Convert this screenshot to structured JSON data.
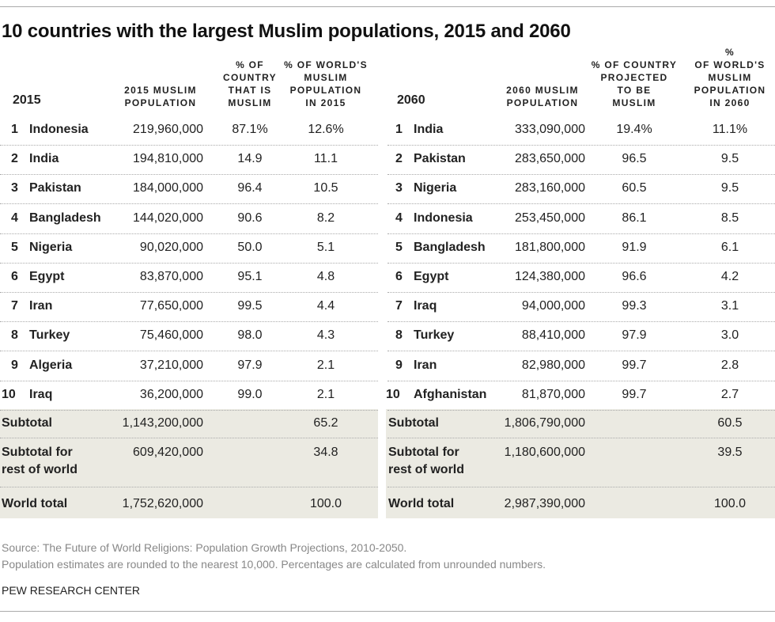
{
  "title": "10 countries with the largest Muslim populations, 2015 and 2060",
  "chart_data": {
    "type": "table",
    "tables": [
      {
        "year_label": "2015",
        "headers": [
          "2015 MUSLIM POPULATION",
          "% OF COUNTRY THAT IS MUSLIM",
          "% OF WORLD'S MUSLIM POPULATION IN 2015"
        ],
        "header_lines": [
          [
            "2015 MUSLIM",
            "POPULATION"
          ],
          [
            "% OF",
            "COUNTRY",
            "THAT IS",
            "MUSLIM"
          ],
          [
            "% OF WORLD'S",
            "MUSLIM",
            "POPULATION",
            "IN 2015"
          ]
        ],
        "rows": [
          {
            "rank": "1",
            "country": "Indonesia",
            "population": "219,960,000",
            "pct_country": "87.1%",
            "pct_world": "12.6%"
          },
          {
            "rank": "2",
            "country": "India",
            "population": "194,810,000",
            "pct_country": "14.9",
            "pct_world": "11.1"
          },
          {
            "rank": "3",
            "country": "Pakistan",
            "population": "184,000,000",
            "pct_country": "96.4",
            "pct_world": "10.5"
          },
          {
            "rank": "4",
            "country": "Bangladesh",
            "population": "144,020,000",
            "pct_country": "90.6",
            "pct_world": "8.2"
          },
          {
            "rank": "5",
            "country": "Nigeria",
            "population": "90,020,000",
            "pct_country": "50.0",
            "pct_world": "5.1"
          },
          {
            "rank": "6",
            "country": "Egypt",
            "population": "83,870,000",
            "pct_country": "95.1",
            "pct_world": "4.8"
          },
          {
            "rank": "7",
            "country": "Iran",
            "population": "77,650,000",
            "pct_country": "99.5",
            "pct_world": "4.4"
          },
          {
            "rank": "8",
            "country": "Turkey",
            "population": "75,460,000",
            "pct_country": "98.0",
            "pct_world": "4.3"
          },
          {
            "rank": "9",
            "country": "Algeria",
            "population": "37,210,000",
            "pct_country": "97.9",
            "pct_world": "2.1"
          },
          {
            "rank": "10",
            "country": "Iraq",
            "population": "36,200,000",
            "pct_country": "99.0",
            "pct_world": "2.1"
          }
        ],
        "totals": [
          {
            "label": [
              "Subtotal"
            ],
            "population": "1,143,200,000",
            "pct_world": "65.2"
          },
          {
            "label": [
              "Subtotal for",
              "rest of world"
            ],
            "population": "609,420,000",
            "pct_world": "34.8"
          },
          {
            "label": [
              "World total"
            ],
            "population": "1,752,620,000",
            "pct_world": "100.0"
          }
        ]
      },
      {
        "year_label": "2060",
        "headers": [
          "2060 MUSLIM POPULATION",
          "% OF COUNTRY PROJECTED TO BE MUSLIM",
          "% OF WORLD'S MUSLIM POPULATION IN 2060"
        ],
        "header_lines": [
          [
            "2060 MUSLIM",
            "POPULATION"
          ],
          [
            "% OF COUNTRY",
            "PROJECTED",
            "TO BE",
            "MUSLIM"
          ],
          [
            "%",
            "OF WORLD'S",
            "MUSLIM",
            "POPULATION",
            "IN 2060"
          ]
        ],
        "rows": [
          {
            "rank": "1",
            "country": "India",
            "population": "333,090,000",
            "pct_country": "19.4%",
            "pct_world": "11.1%"
          },
          {
            "rank": "2",
            "country": "Pakistan",
            "population": "283,650,000",
            "pct_country": "96.5",
            "pct_world": "9.5"
          },
          {
            "rank": "3",
            "country": "Nigeria",
            "population": "283,160,000",
            "pct_country": "60.5",
            "pct_world": "9.5"
          },
          {
            "rank": "4",
            "country": "Indonesia",
            "population": "253,450,000",
            "pct_country": "86.1",
            "pct_world": "8.5"
          },
          {
            "rank": "5",
            "country": "Bangladesh",
            "population": "181,800,000",
            "pct_country": "91.9",
            "pct_world": "6.1"
          },
          {
            "rank": "6",
            "country": "Egypt",
            "population": "124,380,000",
            "pct_country": "96.6",
            "pct_world": "4.2"
          },
          {
            "rank": "7",
            "country": "Iraq",
            "population": "94,000,000",
            "pct_country": "99.3",
            "pct_world": "3.1"
          },
          {
            "rank": "8",
            "country": "Turkey",
            "population": "88,410,000",
            "pct_country": "97.9",
            "pct_world": "3.0"
          },
          {
            "rank": "9",
            "country": "Iran",
            "population": "82,980,000",
            "pct_country": "99.7",
            "pct_world": "2.8"
          },
          {
            "rank": "10",
            "country": "Afghanistan",
            "population": "81,870,000",
            "pct_country": "99.7",
            "pct_world": "2.7"
          }
        ],
        "totals": [
          {
            "label": [
              "Subtotal"
            ],
            "population": "1,806,790,000",
            "pct_world": "60.5"
          },
          {
            "label": [
              "Subtotal for",
              "rest of world"
            ],
            "population": "1,180,600,000",
            "pct_world": "39.5"
          },
          {
            "label": [
              "World total"
            ],
            "population": "2,987,390,000",
            "pct_world": "100.0"
          }
        ]
      }
    ]
  },
  "footer": {
    "source": "Source: The Future of World Religions: Population Growth Projections, 2010-2050.",
    "note": "Population estimates are rounded to the nearest 10,000. Percentages are calculated from unrounded numbers.",
    "org": "PEW RESEARCH CENTER"
  },
  "colors": {
    "band": "#ebeae2",
    "text": "#222222",
    "footnote": "#888888"
  }
}
